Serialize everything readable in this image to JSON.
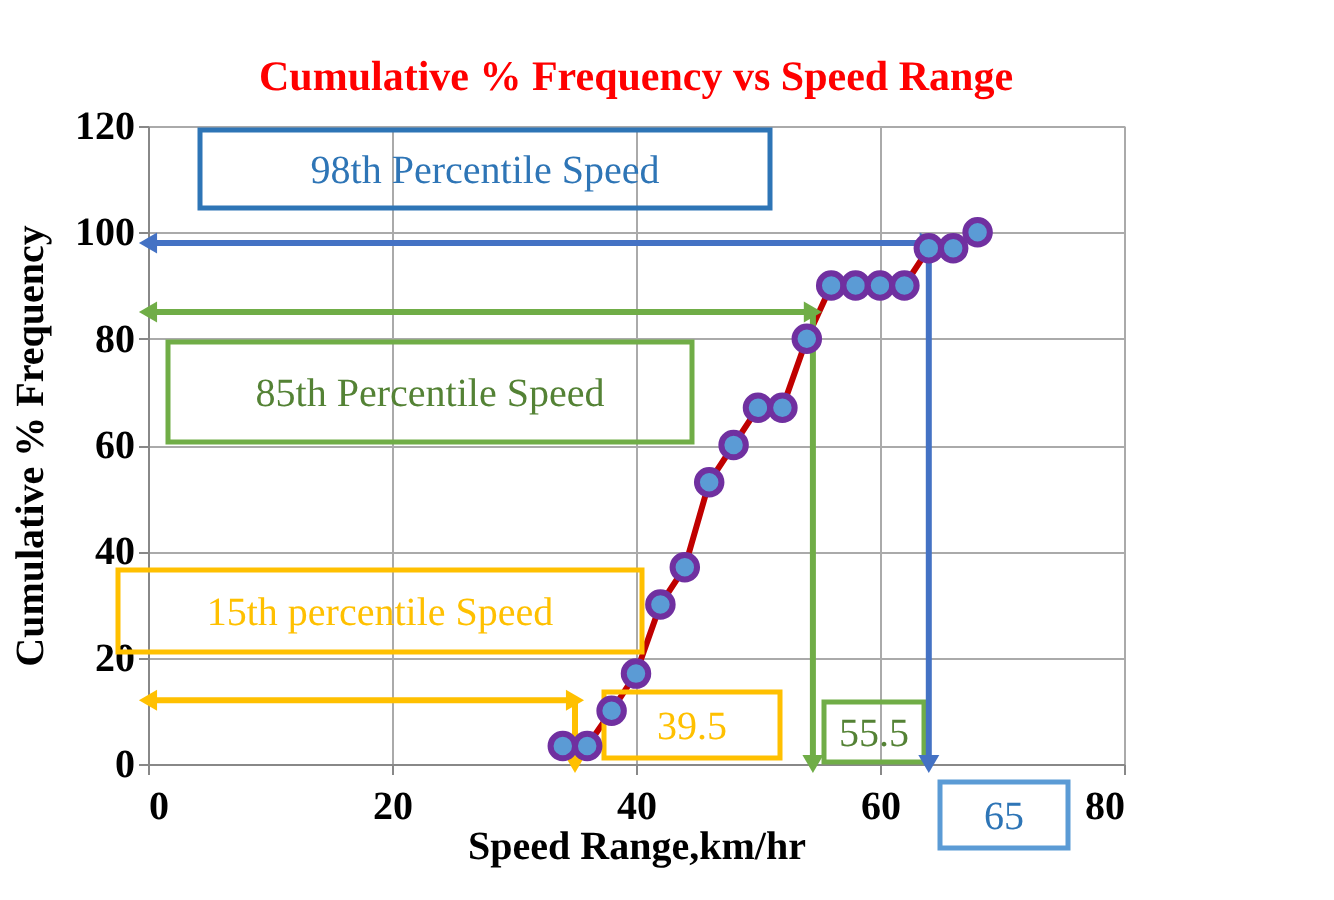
{
  "chart_data": {
    "type": "line",
    "title": "Cumulative % Frequency vs Speed Range",
    "xlabel": "Speed Range,km/hr",
    "ylabel": "Cumulative % Frequency",
    "x": [
      34,
      36,
      38,
      40,
      42,
      44,
      46,
      48,
      50,
      52,
      54,
      56,
      58,
      60,
      62,
      64,
      66,
      68
    ],
    "series": [
      {
        "color": "#c00000",
        "marker": "circle",
        "values": [
          3.4,
          3.4,
          10,
          17,
          30,
          37,
          53,
          60,
          67,
          67,
          80,
          90,
          90,
          90,
          90,
          97,
          97,
          100
        ]
      },
      {
        "color": "#4472c4",
        "marker": "triangle",
        "x": [
          0,
          64,
          64
        ],
        "values": [
          98,
          98,
          0
        ]
      },
      {
        "color": "#70ad47",
        "marker": "triangle",
        "x": [
          0,
          54.5,
          54.5
        ],
        "values": [
          85,
          85,
          0
        ]
      },
      {
        "color": "#ffc000",
        "marker": "triangle",
        "x": [
          0,
          35,
          35
        ],
        "values": [
          12,
          12,
          0
        ]
      }
    ],
    "xlim": [
      0,
      80
    ],
    "ylim": [
      0,
      120
    ],
    "xticks": [
      0,
      20,
      40,
      60,
      80
    ],
    "yticks": [
      0,
      20,
      40,
      60,
      80,
      100,
      120
    ],
    "grid": true,
    "annotations": [
      "98th Percentile Speed",
      "85th Percentile Speed",
      "15th percentile Speed",
      "65",
      "55.5",
      "39.5"
    ]
  }
}
